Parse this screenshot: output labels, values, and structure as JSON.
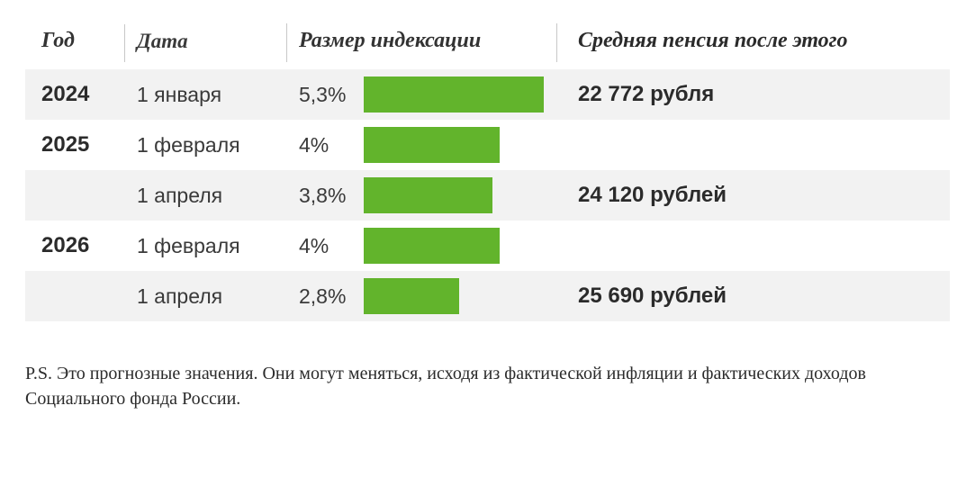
{
  "table": {
    "headers": {
      "year": "Год",
      "date": "Дата",
      "index": "Размер индексации",
      "pension": "Средняя пенсия после этого"
    },
    "bar_color": "#62b42c",
    "stripe_color": "#f2f2f2",
    "text_color": "#2b2b2b",
    "max_pct": 5.3,
    "rows": [
      {
        "year": "2024",
        "date": "1 января",
        "pct_label": "5,3%",
        "pct": 5.3,
        "pension": "22 772 рубля",
        "striped": true
      },
      {
        "year": "2025",
        "date": "1 февраля",
        "pct_label": "4%",
        "pct": 4.0,
        "pension": "",
        "striped": false
      },
      {
        "year": "",
        "date": "1 апреля",
        "pct_label": "3,8%",
        "pct": 3.8,
        "pension": "24 120 рублей",
        "striped": true
      },
      {
        "year": "2026",
        "date": "1 февраля",
        "pct_label": "4%",
        "pct": 4.0,
        "pension": "",
        "striped": false
      },
      {
        "year": "",
        "date": "1 апреля",
        "pct_label": "2,8%",
        "pct": 2.8,
        "pension": "25 690 рублей",
        "striped": true
      }
    ]
  },
  "footnote": "P.S. Это прогнозные значения. Они могут меняться, исходя из фактической инфляции и фактических доходов Социального фонда России."
}
